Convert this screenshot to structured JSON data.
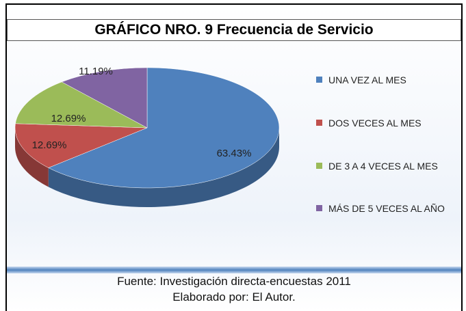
{
  "chart_data": {
    "type": "pie",
    "title": "GRÁFICO NRO. 9 Frecuencia de Servicio",
    "categories": [
      "UNA VEZ AL MES",
      "DOS VECES  AL MES",
      "DE 3 A 4 VECES  AL MES",
      "MÁS DE 5 VECES AL AÑO"
    ],
    "values": [
      63.43,
      12.69,
      12.69,
      11.19
    ],
    "value_labels": [
      "63.43%",
      "12.69%",
      "12.69%",
      "11.19%"
    ],
    "colors": [
      "#4f81bd",
      "#c0504d",
      "#9bbb59",
      "#8064a2"
    ],
    "legend": "right",
    "source": "Fuente:  Investigación directa-encuestas 2011",
    "note": "Elaborado por: El Autor."
  }
}
